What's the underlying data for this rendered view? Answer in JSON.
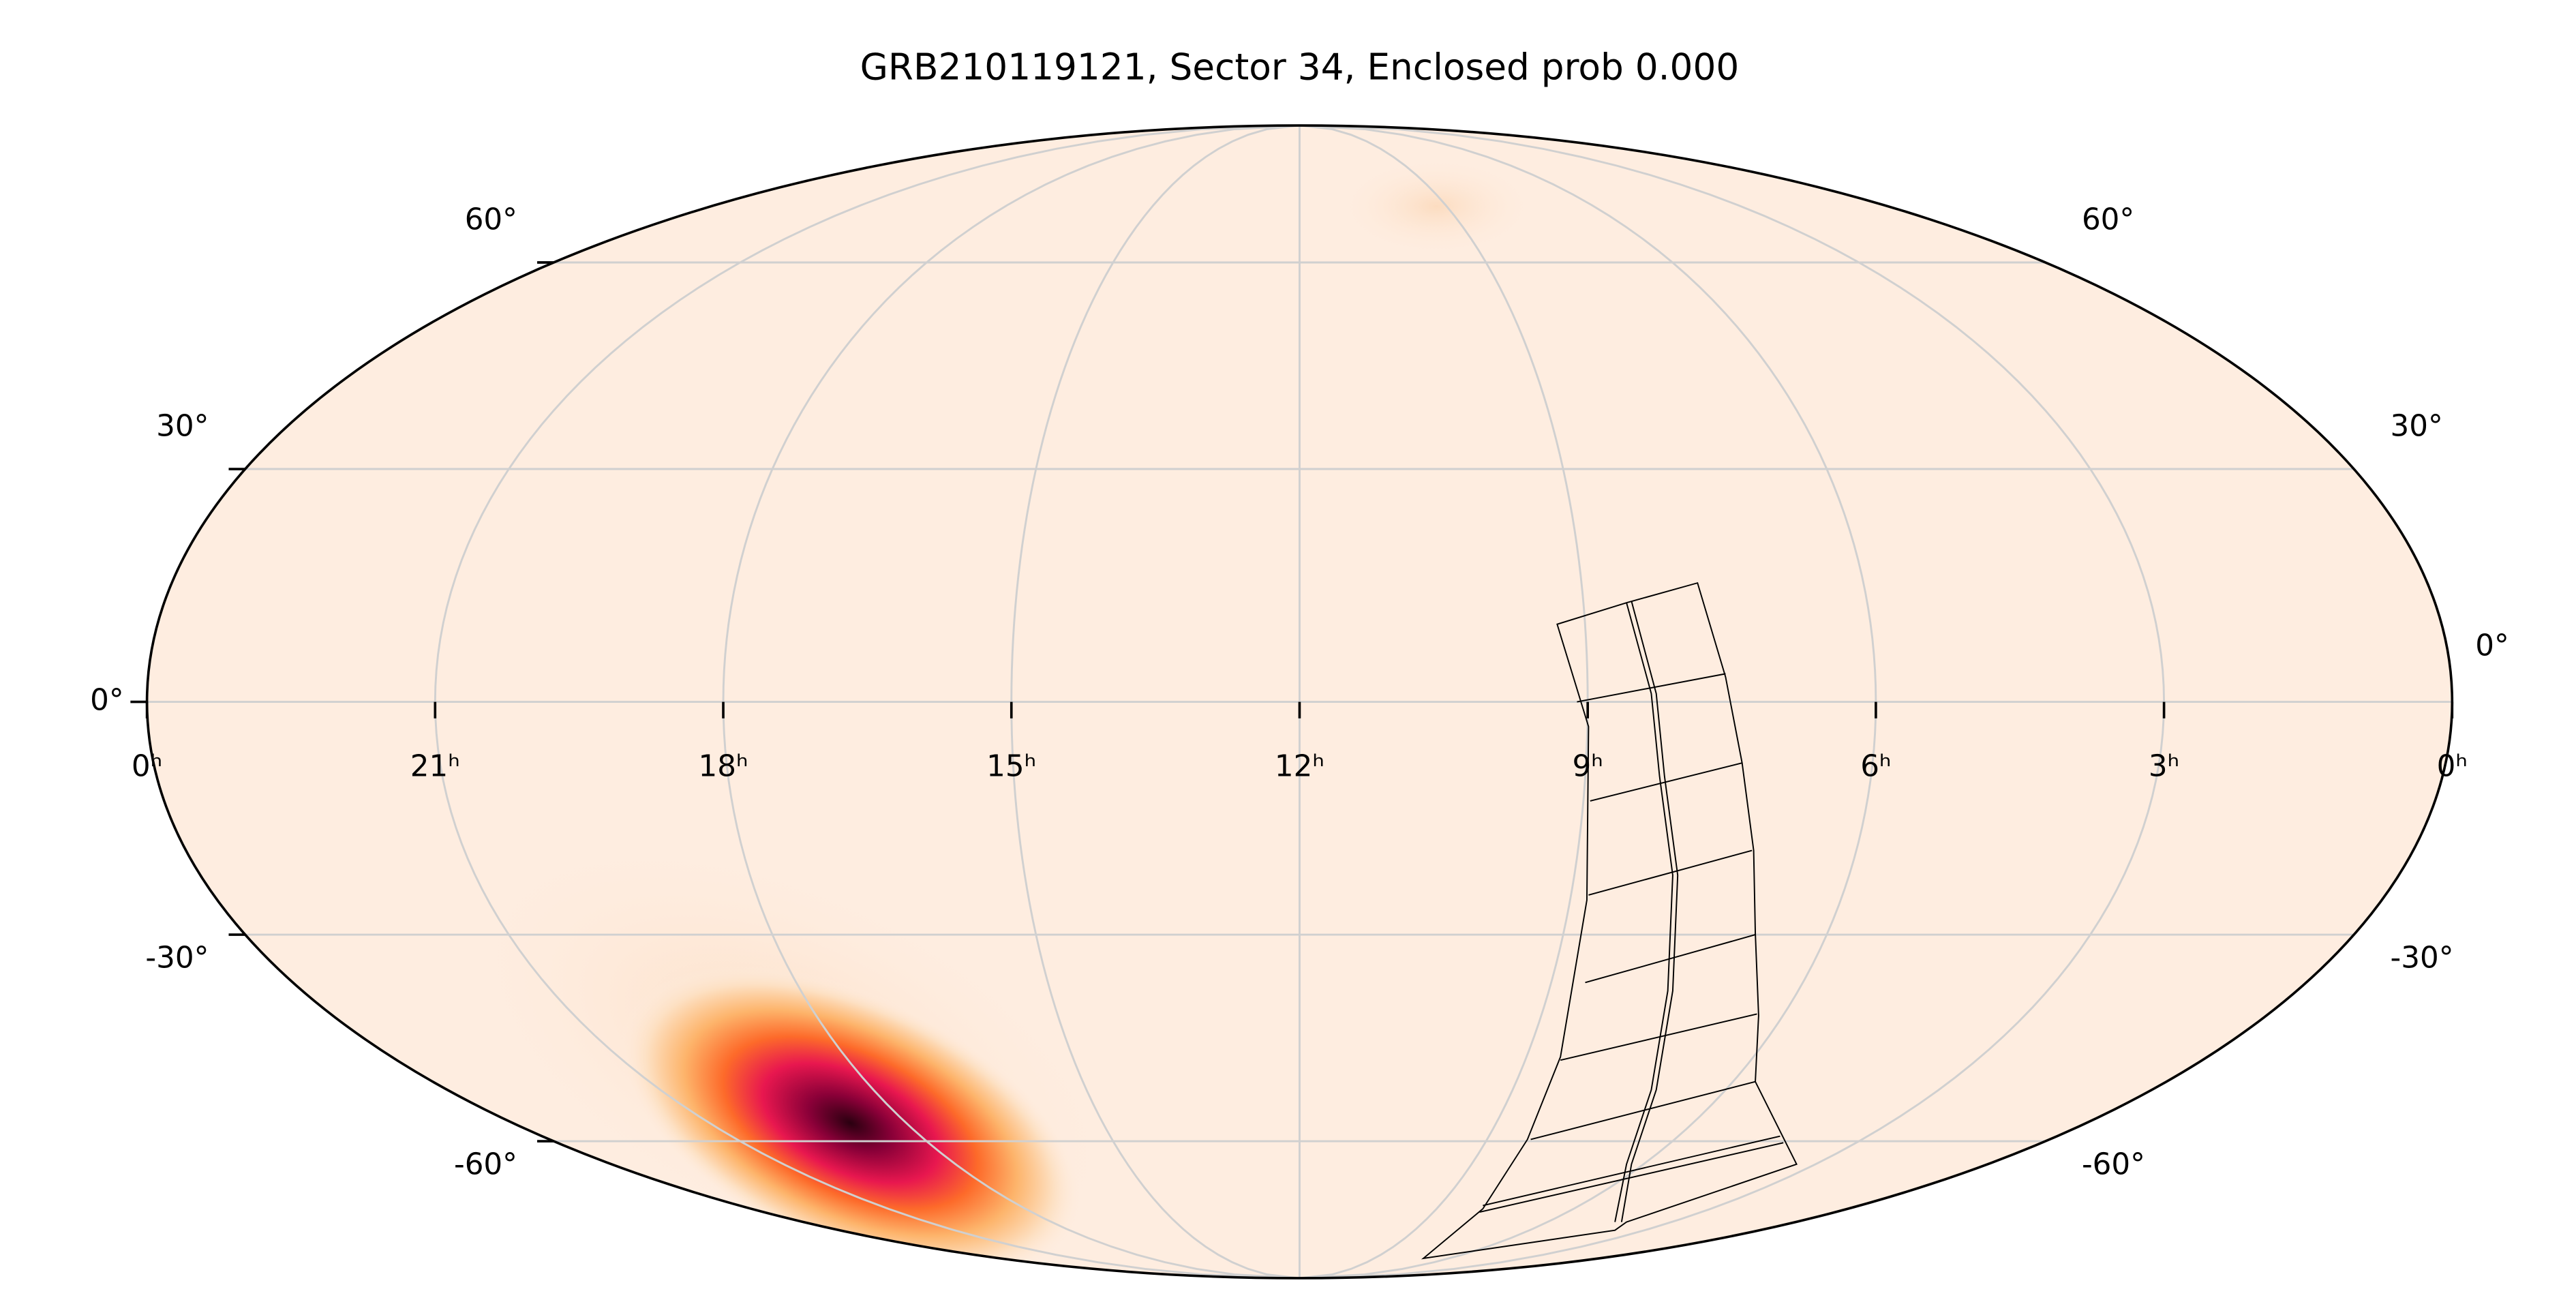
{
  "chart_data": {
    "type": "mollweide",
    "title": "GRB210119121, Sector 34, Enclosed prob 0.000",
    "xlim": [
      24,
      0
    ],
    "xticks": [
      {
        "value": 24,
        "label": "0ʰ"
      },
      {
        "value": 21,
        "label": "21ʰ"
      },
      {
        "value": 18,
        "label": "18ʰ"
      },
      {
        "value": 15,
        "label": "15ʰ"
      },
      {
        "value": 12,
        "label": "12ʰ"
      },
      {
        "value": 9,
        "label": "9ʰ"
      },
      {
        "value": 6,
        "label": "6ʰ"
      },
      {
        "value": 3,
        "label": "3ʰ"
      },
      {
        "value": 0,
        "label": "0ʰ"
      }
    ],
    "ylim": [
      -90,
      90
    ],
    "yticks": [
      {
        "value": -60,
        "label": "-60°"
      },
      {
        "value": -30,
        "label": "-30°"
      },
      {
        "value": 0,
        "label": "0°"
      },
      {
        "value": 30,
        "label": "30°"
      },
      {
        "value": 60,
        "label": "60°"
      }
    ],
    "grid": true
  }
}
